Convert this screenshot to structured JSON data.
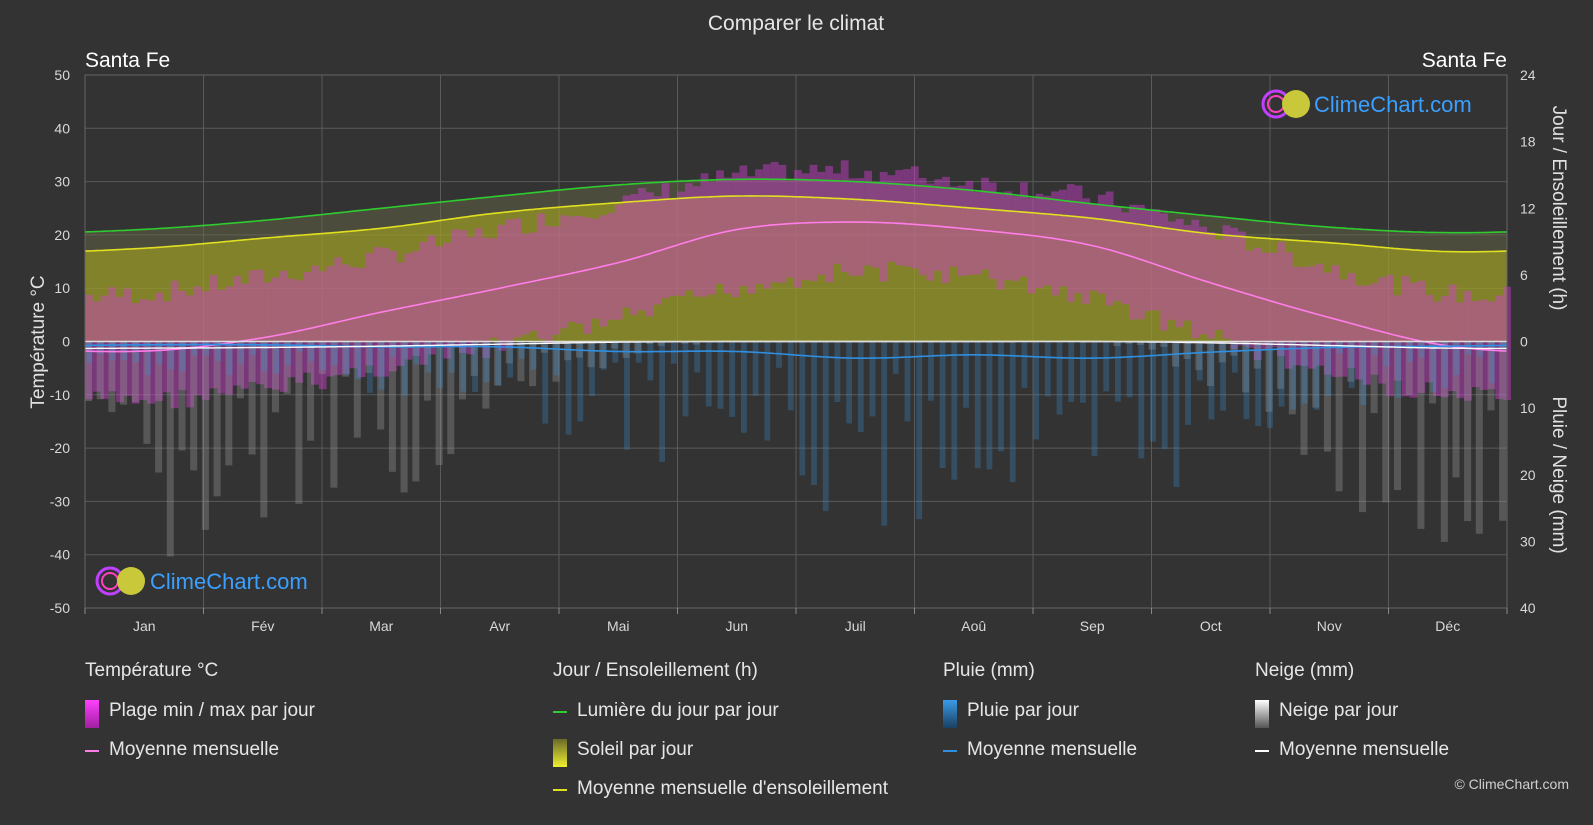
{
  "title": "Comparer le climat",
  "location_left": "Santa Fe",
  "location_right": "Santa Fe",
  "watermark": "ClimeChart.com",
  "copyright": "© ClimeChart.com",
  "colors": {
    "background": "#333333",
    "daylight": "#2ecc2e",
    "sunshine_mean": "#e0e020",
    "sunshine_fill": "#9d9d2a",
    "temp_range": "#d03fd0",
    "temp_mean": "#ff7de8",
    "rain": "#3a8fd0",
    "rain_mean": "#2f8fe0",
    "snow": "#9a9a9a",
    "snow_mean": "#ffffff",
    "watermark_text": "#3aa0ff"
  },
  "chart_data": {
    "type": "area",
    "categories": [
      "Jan",
      "Fév",
      "Mar",
      "Avr",
      "Mai",
      "Jun",
      "Juil",
      "Aoû",
      "Sep",
      "Oct",
      "Nov",
      "Déc"
    ],
    "y_left": {
      "label": "Température °C",
      "ticks": [
        50,
        40,
        30,
        20,
        10,
        0,
        -10,
        -20,
        -30,
        -40,
        -50
      ],
      "range": [
        -50,
        50
      ]
    },
    "y_right_top": {
      "label": "Jour / Ensoleillement (h)",
      "ticks": [
        24,
        18,
        12,
        6,
        0
      ],
      "range": [
        0,
        24
      ]
    },
    "y_right_bottom": {
      "label": "Pluie / Neige (mm)",
      "ticks": [
        0,
        10,
        20,
        30,
        40
      ],
      "range": [
        0,
        40
      ]
    },
    "grid": true,
    "series": [
      {
        "name": "Lumière du jour par jour",
        "unit": "h",
        "values": [
          10.1,
          10.9,
          12.0,
          13.1,
          14.1,
          14.6,
          14.4,
          13.6,
          12.4,
          11.3,
          10.3,
          9.8
        ]
      },
      {
        "name": "Moyenne mensuelle d'ensoleillement",
        "unit": "h",
        "values": [
          8.4,
          9.3,
          10.2,
          11.6,
          12.5,
          13.1,
          12.8,
          12.0,
          11.1,
          9.7,
          8.9,
          8.1
        ]
      },
      {
        "name": "Moyenne mensuelle",
        "group": "Température °C",
        "unit": "°C",
        "values": [
          -1.8,
          0.7,
          5.5,
          10.0,
          14.8,
          21.0,
          22.4,
          21.0,
          18.0,
          11.0,
          4.5,
          -0.8
        ]
      },
      {
        "name": "Plage min / max par jour (min)",
        "group": "Température °C",
        "unit": "°C",
        "values": [
          -9,
          -7,
          -3,
          1,
          6,
          12,
          15,
          14,
          10,
          3,
          -4,
          -8
        ]
      },
      {
        "name": "Plage min / max par jour (max)",
        "group": "Température °C",
        "unit": "°C",
        "values": [
          7,
          10,
          14,
          19,
          24,
          29,
          30,
          28,
          25,
          19,
          12,
          7
        ]
      },
      {
        "name": "Moyenne mensuelle",
        "group": "Pluie (mm)",
        "unit": "mm",
        "values": [
          0.5,
          0.5,
          0.8,
          0.8,
          1.5,
          1.5,
          2.5,
          2.0,
          2.5,
          1.6,
          0.9,
          0.7
        ]
      },
      {
        "name": "Moyenne mensuelle",
        "group": "Neige (mm)",
        "unit": "mm",
        "values": [
          1.0,
          0.9,
          0.7,
          0.4,
          0.1,
          0.0,
          0.0,
          0.0,
          0.0,
          0.2,
          0.6,
          1.0
        ]
      }
    ]
  },
  "legend": {
    "temperature": {
      "title": "Température °C",
      "items": [
        "Plage min / max par jour",
        "Moyenne mensuelle"
      ]
    },
    "sun": {
      "title": "Jour / Ensoleillement (h)",
      "items": [
        "Lumière du jour par jour",
        "Soleil par jour",
        "Moyenne mensuelle d'ensoleillement"
      ]
    },
    "rain": {
      "title": "Pluie (mm)",
      "items": [
        "Pluie par jour",
        "Moyenne mensuelle"
      ]
    },
    "snow": {
      "title": "Neige (mm)",
      "items": [
        "Neige par jour",
        "Moyenne mensuelle"
      ]
    }
  }
}
